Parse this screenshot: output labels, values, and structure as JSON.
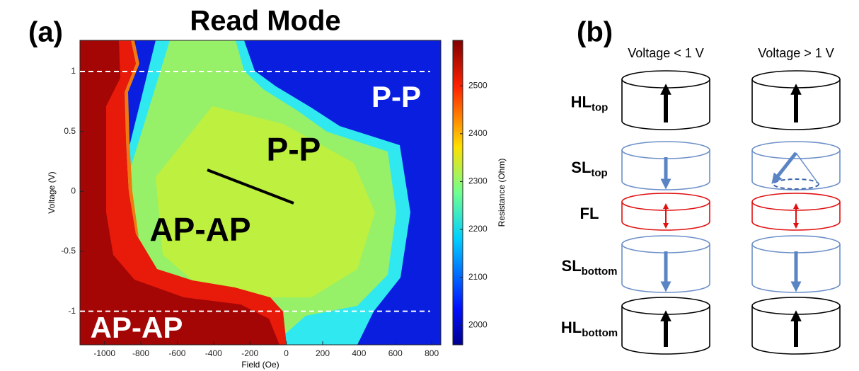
{
  "panel_a": {
    "label": "(a)",
    "title": "Read Mode",
    "x_label": "Field (Oe)",
    "y_label": "Voltage (V)",
    "xlim": [
      -1135,
      850
    ],
    "xticks": [
      -1000,
      -800,
      -600,
      -400,
      -200,
      0,
      200,
      400,
      600,
      800
    ],
    "ylim": [
      -1.28,
      1.26
    ],
    "yticks": [
      -1,
      -0.5,
      0,
      0.5,
      1
    ],
    "dashed_lines": [
      1,
      -1
    ],
    "colorbar": {
      "label": "Resistance (Ohm)",
      "lim": [
        1959,
        2595
      ],
      "ticks": [
        2000,
        2100,
        2200,
        2300,
        2400,
        2500
      ]
    },
    "annotations": [
      "P-P",
      "P-P",
      "AP-AP",
      "AP-AP"
    ]
  },
  "panel_b": {
    "label": "(b)",
    "columns": [
      "Voltage < 1 V",
      "Voltage > 1 V"
    ],
    "layers": [
      {
        "name": "HL",
        "sub": "top"
      },
      {
        "name": "SL",
        "sub": "top"
      },
      {
        "name": "FL"
      },
      {
        "name": "SL",
        "sub": "bottom"
      },
      {
        "name": "HL",
        "sub": "bottom"
      }
    ]
  }
}
